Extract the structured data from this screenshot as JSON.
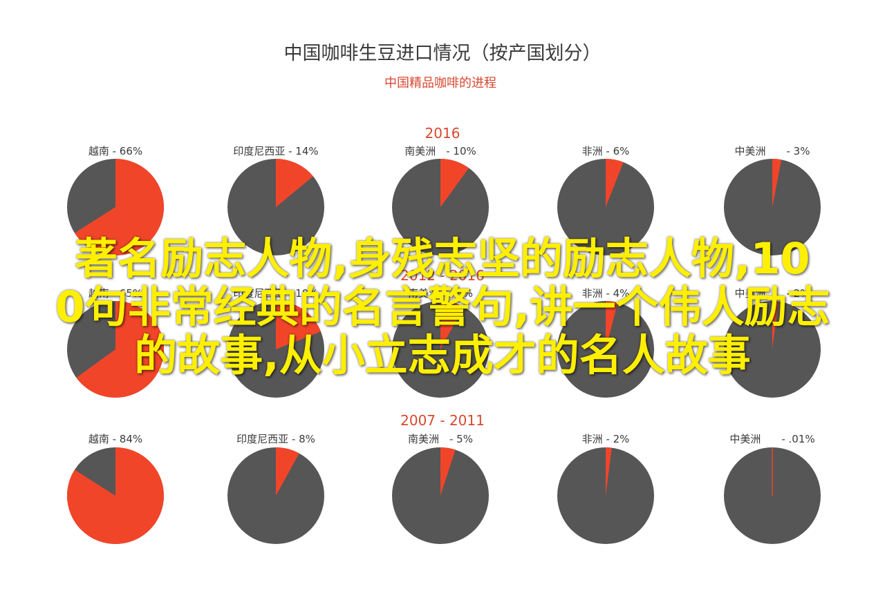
{
  "chart_data": {
    "type": "pie",
    "title": "中国咖啡生豆进口情况（按产国划分）",
    "subtitle": "中国精品咖啡的进程",
    "colors": {
      "highlight": "#f1452a",
      "rest": "#565656",
      "title": "#3a3a3a",
      "accent": "#d8472f"
    },
    "periods": [
      {
        "label": "2016",
        "slices": [
          {
            "country": "越南",
            "value": 66,
            "label": "越南 - 66%"
          },
          {
            "country": "印度尼西亚",
            "value": 14,
            "label": "印度尼西亚 - 14%"
          },
          {
            "country": "南美洲",
            "value": 10,
            "label": "南美洲　- 10%"
          },
          {
            "country": "非洲",
            "value": 6,
            "label": "非洲 - 6%"
          },
          {
            "country": "中美洲",
            "value": 3,
            "label": "中美洲　　- 3%"
          }
        ]
      },
      {
        "label": "2012 - 2016",
        "slices": [
          {
            "country": "越南",
            "value": 65,
            "label": "越南 - 65%"
          },
          {
            "country": "印度尼西亚",
            "value": 19,
            "label": "印度尼西亚 - 19%"
          },
          {
            "country": "南美洲",
            "value": 8,
            "label": "南美洲　- 8%"
          },
          {
            "country": "非洲",
            "value": 4,
            "label": "非洲 - 4%"
          },
          {
            "country": "中美洲",
            "value": 2,
            "label": "中美洲　　- 2%"
          }
        ]
      },
      {
        "label": "2007 - 2011",
        "slices": [
          {
            "country": "越南",
            "value": 84,
            "label": "越南 - 84%"
          },
          {
            "country": "印度尼西亚",
            "value": 8,
            "label": "印度尼西亚 - 8%"
          },
          {
            "country": "南美洲",
            "value": 5,
            "label": "南美洲　- 5%"
          },
          {
            "country": "非洲",
            "value": 2,
            "label": "非洲 - 2%"
          },
          {
            "country": "中美洲",
            "value": 0.01,
            "label": "中美洲　　- .01%"
          }
        ]
      }
    ]
  },
  "overlay": {
    "line1": "著名励志人物,身残志坚的励志人物,10",
    "line2": "0句非常经典的名言警句,讲一个伟人励志",
    "line3": "的故事,从小立志成才的名人故事"
  }
}
